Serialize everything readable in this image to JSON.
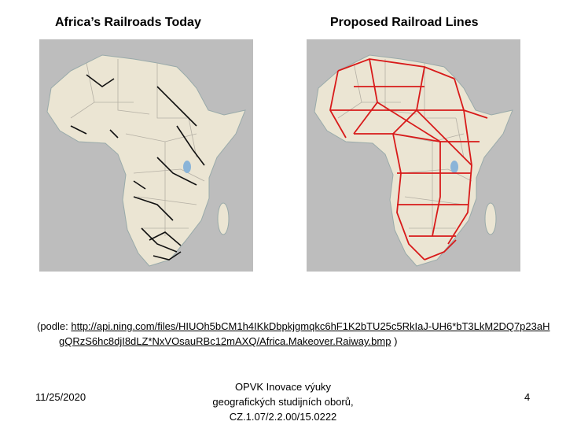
{
  "slide": {
    "maps": [
      {
        "title": "Africa’s Railroads Today"
      },
      {
        "title": "Proposed Railroad Lines"
      }
    ],
    "caption": {
      "prefix": "(podle:",
      "link": "http://api.ning.com/files/HIUOh5bCM1h4IKkDbpkjgmqkc6hF1K2bTU25c5RkIaJ-UH6*bT3LkM2DQ7p23aHgQRzS6hc8djI8dLZ*NxVOsauRBc12mAXQ/Africa.Makeover.Raiway.bmp",
      "suffix": ")"
    },
    "footer": {
      "date": "11/25/2020",
      "center_lines": [
        "OPVK Inovace výuky",
        "geografických studijních oborů,",
        "CZ.1.07/2.2.00/15.0222"
      ],
      "page_number": 4
    }
  }
}
